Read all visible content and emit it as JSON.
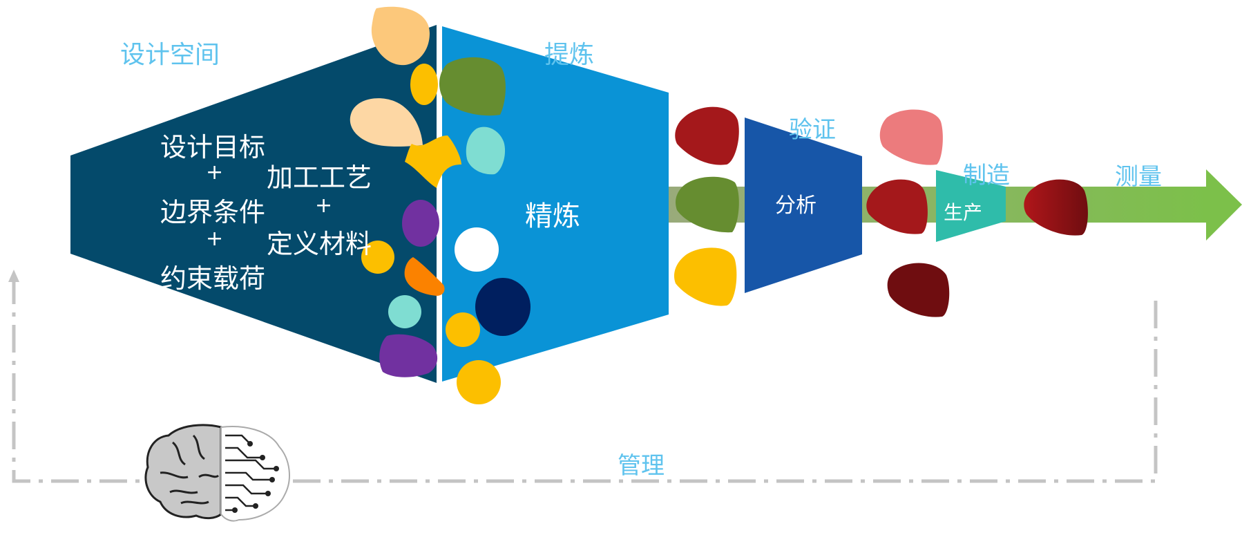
{
  "stages": {
    "design_space": "设计空间",
    "refine": "提炼",
    "verify": "验证",
    "manufacture": "制造",
    "measure": "测量",
    "manage": "管理"
  },
  "boxes": {
    "refinement": "精炼",
    "analysis": "分析",
    "production": "生产"
  },
  "design_inputs": {
    "line1": "设计目标",
    "plus1": "+",
    "line2": "加工工艺",
    "line3": "边界条件",
    "plus2": "+",
    "plus3": "+",
    "line4": "定义材料",
    "line5": "约束载荷"
  },
  "colors": {
    "design_space": "#044a6b",
    "refine": "#0a93d6",
    "analysis": "#1756a8",
    "production": "#2fbcaa",
    "flow_arrow": "#8fb656",
    "label_blue": "#5fc3ee",
    "loop_line": "#c4c4c4"
  },
  "icons": {
    "brain": "brain-circuit-icon"
  }
}
